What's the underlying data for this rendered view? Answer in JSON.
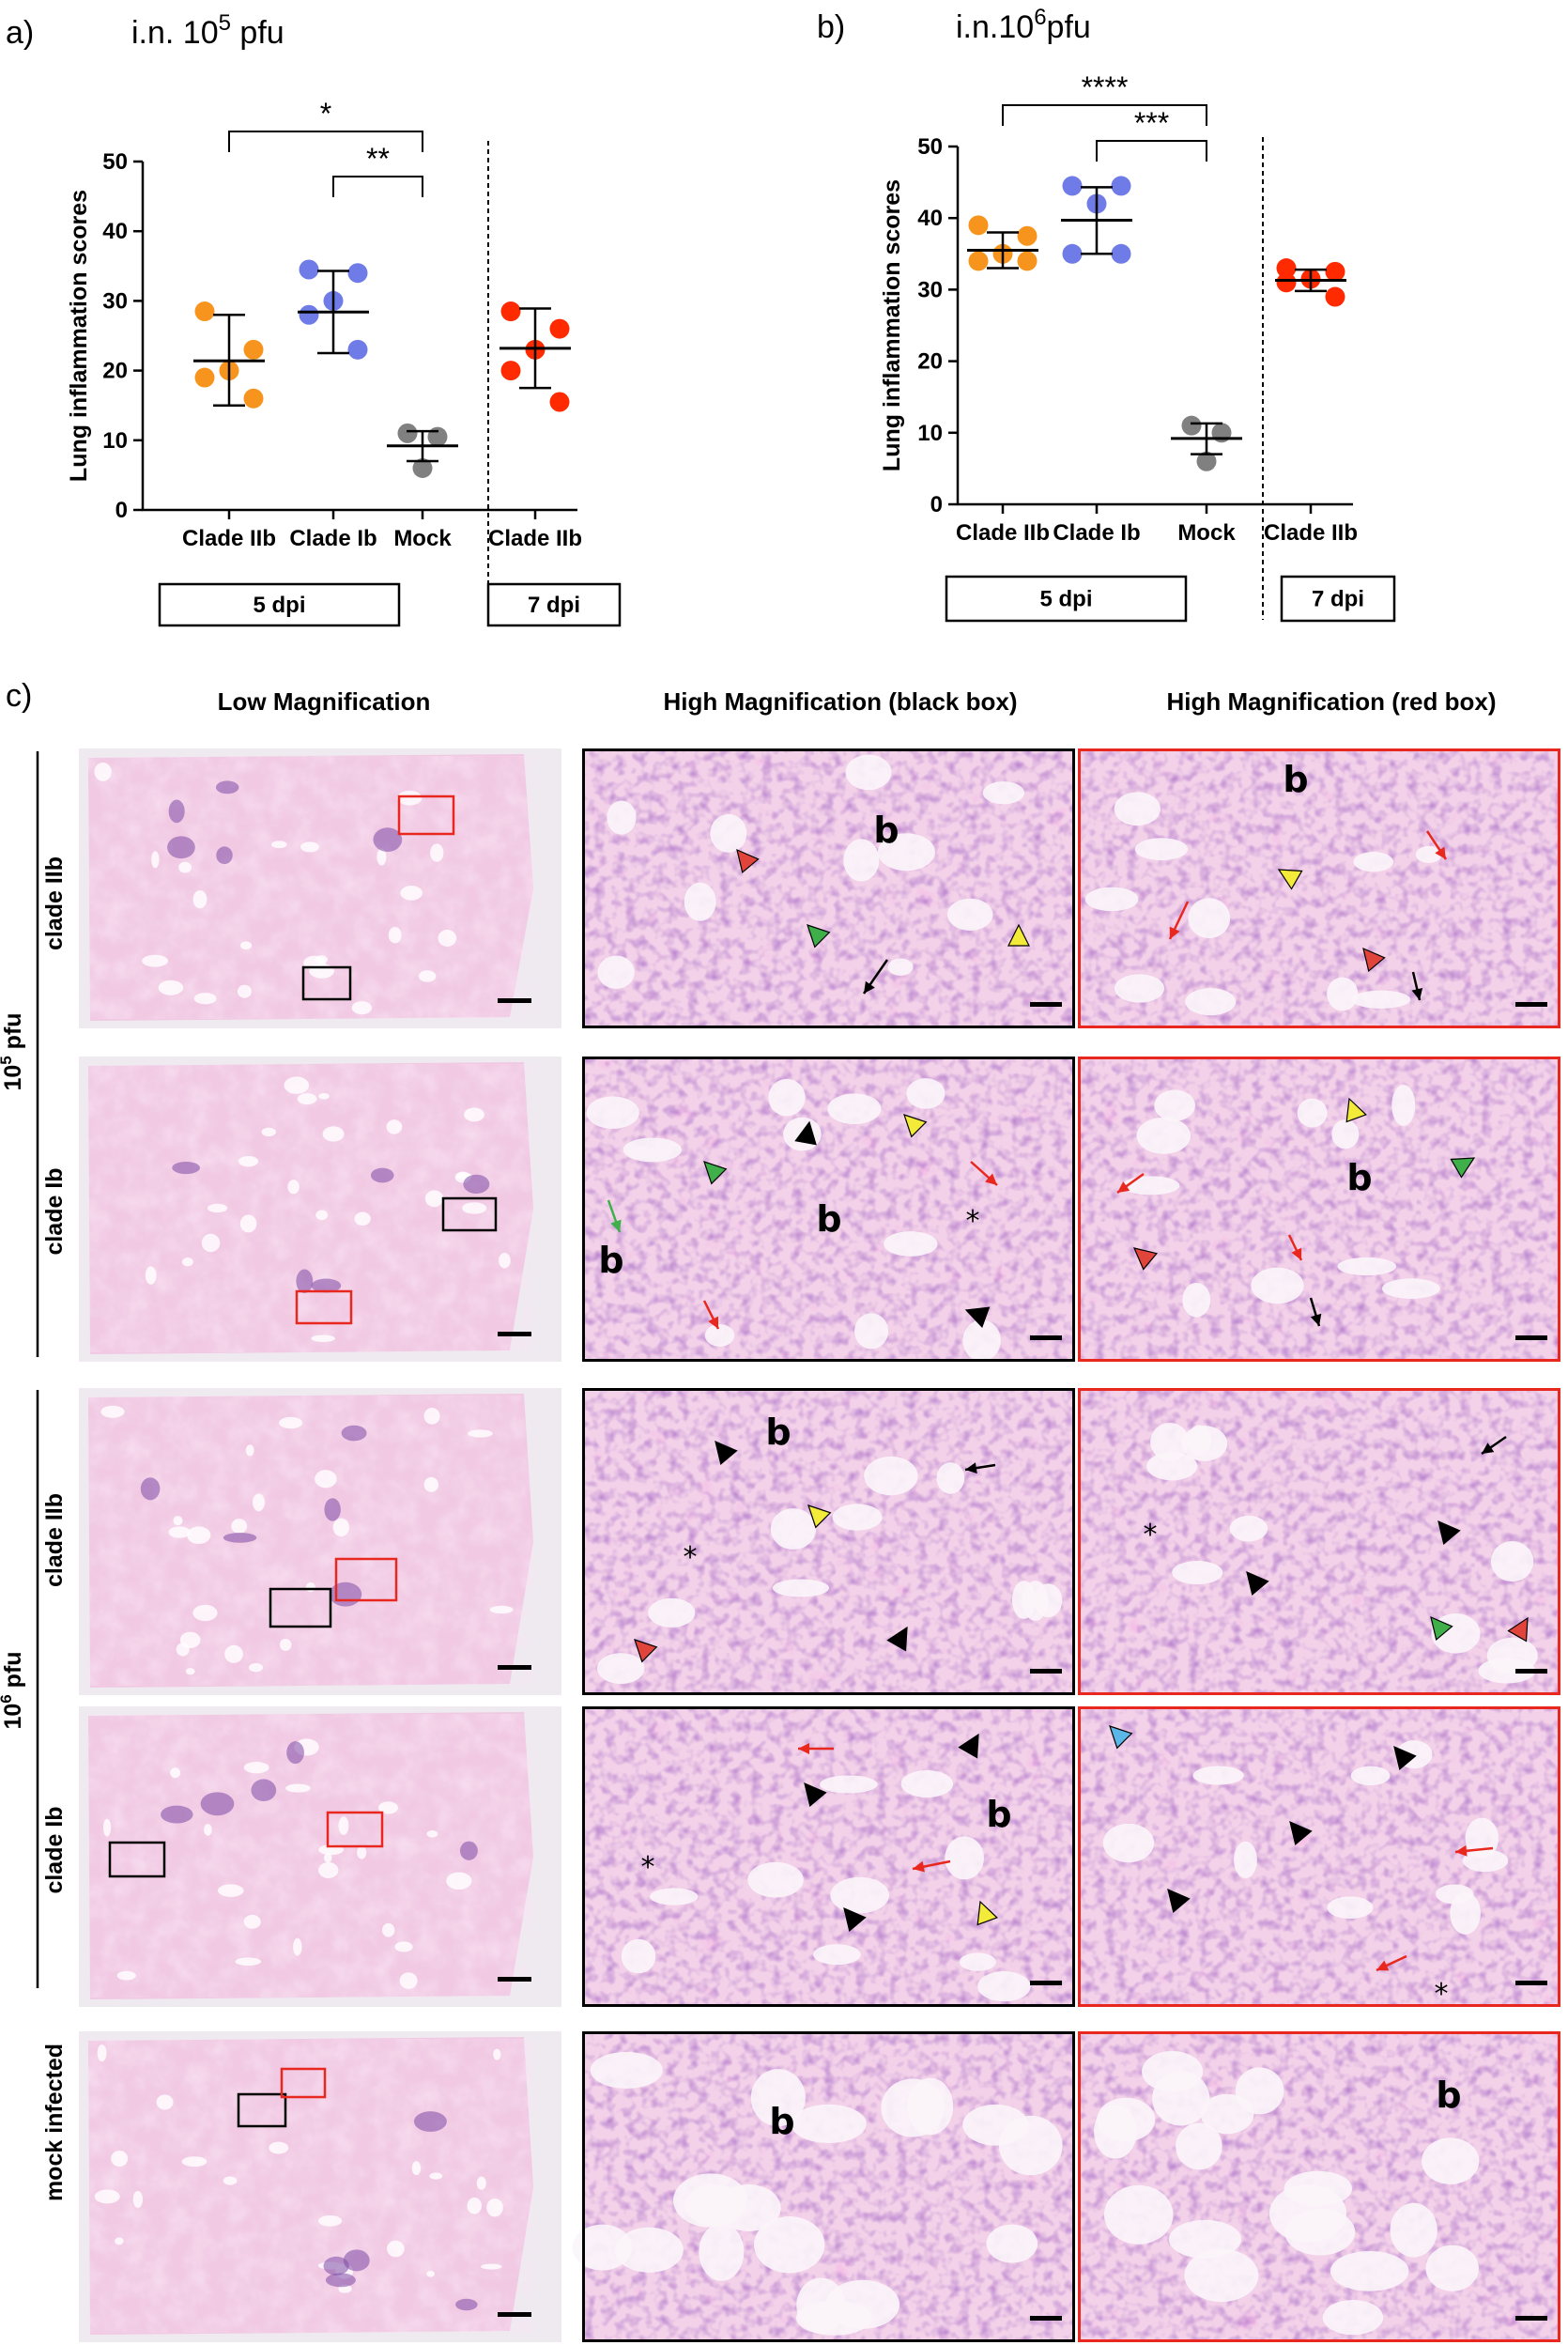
{
  "panel_a": {
    "label": "a)",
    "title_main": "i.n. 10",
    "title_sup": "5",
    "title_unit": " pfu"
  },
  "panel_b": {
    "label": "b)",
    "title_main": "i.n.10",
    "title_sup": "6",
    "title_unit": "pfu"
  },
  "chart_data": [
    {
      "type": "scatter",
      "ylabel": "Lung inflammation scores",
      "ylim": [
        0,
        50
      ],
      "yticks": [
        0,
        10,
        20,
        30,
        40,
        50
      ],
      "categories": [
        "Clade IIb",
        "Clade Ib",
        "Mock",
        "Clade IIb"
      ],
      "groups": [
        {
          "label": "5 dpi",
          "span": [
            0,
            2
          ]
        },
        {
          "label": "7 dpi",
          "span": [
            3,
            3
          ]
        }
      ],
      "series": [
        {
          "category": "Clade IIb",
          "color": "#F7941D",
          "points": [
            28.5,
            23,
            20,
            19,
            16
          ],
          "mean": 21.4,
          "sd_low": 15,
          "sd_high": 28
        },
        {
          "category": "Clade Ib",
          "color": "#6F7CE8",
          "points": [
            34.5,
            34,
            30,
            28,
            23
          ],
          "mean": 28.4,
          "sd_low": 22.5,
          "sd_high": 34.3
        },
        {
          "category": "Mock",
          "color": "#808080",
          "points": [
            11,
            10.5,
            6
          ],
          "mean": 9.2,
          "sd_low": 7,
          "sd_high": 11.3
        },
        {
          "category": "Clade IIb",
          "color": "#FF2A00",
          "points": [
            28.5,
            26,
            23,
            20,
            15.5
          ],
          "mean": 23.2,
          "sd_low": 17.5,
          "sd_high": 28.9
        }
      ],
      "significance": [
        {
          "from": 0,
          "to": 2,
          "label": "*"
        },
        {
          "from": 1,
          "to": 2,
          "label": "**"
        }
      ]
    },
    {
      "type": "scatter",
      "ylabel": "Lung inflammation scores",
      "ylim": [
        0,
        50
      ],
      "yticks": [
        0,
        10,
        20,
        30,
        40,
        50
      ],
      "categories": [
        "Clade IIb",
        "Clade Ib",
        "Mock",
        "Clade IIb"
      ],
      "groups": [
        {
          "label": "5 dpi",
          "span": [
            0,
            2
          ]
        },
        {
          "label": "7 dpi",
          "span": [
            3,
            3
          ]
        }
      ],
      "series": [
        {
          "category": "Clade IIb",
          "color": "#F7941D",
          "points": [
            39,
            37.5,
            35,
            34,
            34
          ],
          "mean": 35.5,
          "sd_low": 33,
          "sd_high": 38
        },
        {
          "category": "Clade Ib",
          "color": "#6F7CE8",
          "points": [
            44.5,
            44.5,
            42,
            35,
            35
          ],
          "mean": 39.7,
          "sd_low": 35,
          "sd_high": 44.3
        },
        {
          "category": "Mock",
          "color": "#808080",
          "points": [
            11,
            10,
            6
          ],
          "mean": 9.2,
          "sd_low": 7,
          "sd_high": 11.3
        },
        {
          "category": "Clade IIb",
          "color": "#FF2A00",
          "points": [
            33,
            32.5,
            31.5,
            31,
            29
          ],
          "mean": 31.3,
          "sd_low": 29.8,
          "sd_high": 32.8
        }
      ],
      "significance": [
        {
          "from": 0,
          "to": 2,
          "label": "****"
        },
        {
          "from": 1,
          "to": 2,
          "label": "***"
        }
      ]
    }
  ],
  "panel_c": {
    "label": "c)",
    "col_headers": [
      "Low Magnification",
      "High Magnification (black box)",
      "High Magnification (red box)"
    ],
    "dose_label_1_main": "10",
    "dose_label_1_sup": "5",
    "dose_label_1_unit": " pfu",
    "dose_label_2_main": "10",
    "dose_label_2_sup": "6",
    "dose_label_2_unit": " pfu",
    "rows": [
      {
        "label": "clade IIb"
      },
      {
        "label": "clade Ib"
      },
      {
        "label": "clade IIb"
      },
      {
        "label": "clade Ib"
      },
      {
        "label": "mock infected"
      }
    ],
    "bronchus_mark": "b",
    "asterisk_mark": "*",
    "colors": {
      "tissue_bg": "#F2C6E2",
      "tissue_dense": "#B04FB0",
      "lowmag_bg": "#EDE9EE",
      "black_frame": "#000000",
      "red_frame": "#E8281E"
    }
  }
}
